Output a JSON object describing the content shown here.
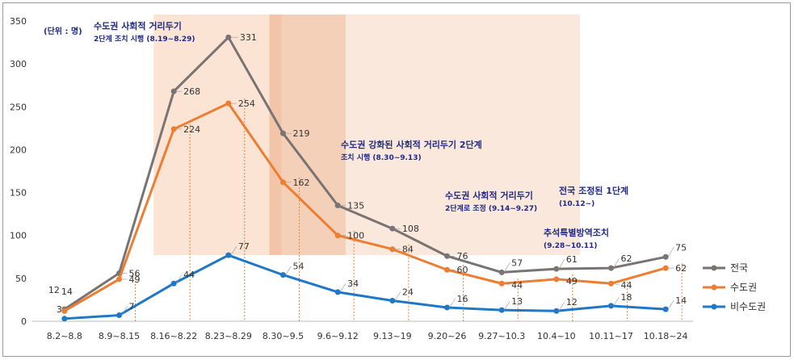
{
  "chart_data": {
    "type": "line",
    "unit_label": "(단위 : 명)",
    "title": "",
    "xlabel": "",
    "ylabel": "",
    "ylim": [
      0,
      350
    ],
    "yticks": [
      0,
      50,
      100,
      150,
      200,
      250,
      300,
      350
    ],
    "categories": [
      "8.2~8.8",
      "8.9~8.15",
      "8.16~8.22",
      "8.23~8.29",
      "8.30~9.5",
      "9.6~9.12",
      "9.13~19",
      "9.20~26",
      "9.27~10.3",
      "10.4~10",
      "10.11~17",
      "10.18~24"
    ],
    "series": [
      {
        "name": "전국",
        "color": "#7a7373",
        "values": [
          14,
          56,
          268,
          331,
          219,
          135,
          108,
          76,
          57,
          61,
          62,
          75
        ]
      },
      {
        "name": "수도권",
        "color": "#ed7d31",
        "values": [
          12,
          49,
          224,
          254,
          162,
          100,
          84,
          60,
          44,
          49,
          44,
          62
        ]
      },
      {
        "name": "비수도권",
        "color": "#1f77c8",
        "values": [
          3,
          7,
          44,
          77,
          54,
          34,
          24,
          16,
          13,
          12,
          18,
          14
        ]
      }
    ],
    "legend_position": "right",
    "grid": false,
    "annotations": [
      {
        "lines": [
          "수도권 사회적 거리두기",
          "2단계 조치 시행 (8.19~8.29)"
        ]
      },
      {
        "lines": [
          "수도권  강화된 사회적 거리두기 2단계",
          "조치 시행 (8.30~9.13)"
        ]
      },
      {
        "lines": [
          "수도권  사회적 거리두기",
          "2단계로 조정 (9.14~9.27)"
        ]
      },
      {
        "lines": [
          "전국 조정된 1단계",
          "(10.12~)"
        ]
      },
      {
        "lines": [
          "추석특별방역조치",
          "(9.28~10.11)"
        ]
      }
    ]
  }
}
